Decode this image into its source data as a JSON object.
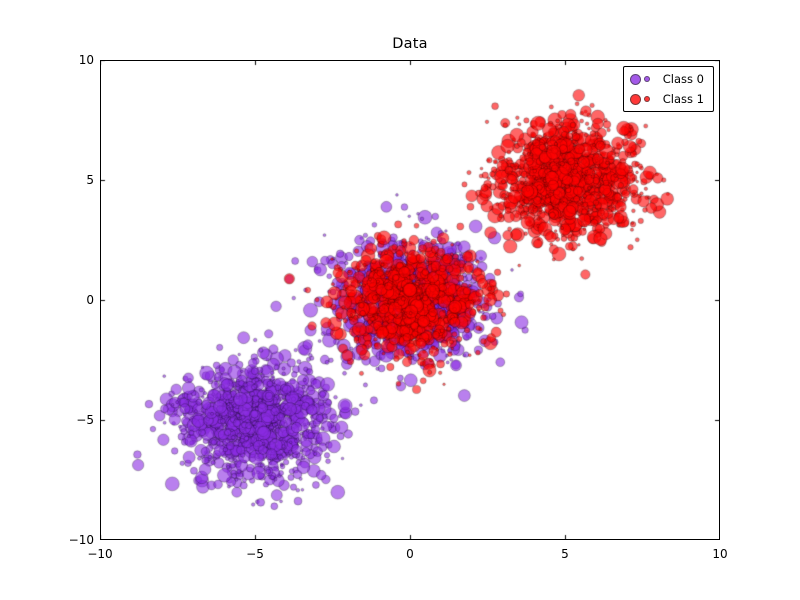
{
  "figure": {
    "background": "#ffffff"
  },
  "chart_data": {
    "type": "scatter",
    "title": "Data",
    "xlabel": "",
    "ylabel": "",
    "xlim": [
      -10,
      10
    ],
    "ylim": [
      -10,
      10
    ],
    "grid": false,
    "xticks": [
      "−10",
      "−5",
      "0",
      "5",
      "10"
    ],
    "yticks": [
      "10",
      "5",
      "0",
      "−5",
      "−10"
    ],
    "xtick_values": [
      -10,
      -5,
      0,
      5,
      10
    ],
    "ytick_values": [
      10,
      5,
      0,
      -5,
      -10
    ],
    "legend": {
      "position": "upper right",
      "items": [
        {
          "label": "Class 0",
          "color": "#8a2be2"
        },
        {
          "label": "Class 1",
          "color": "#ff0000"
        }
      ]
    },
    "marker": {
      "shape": "circle",
      "alpha": 0.6,
      "edge_color": "rgba(0,0,0,0.55)",
      "r_min": 1.3,
      "r_max": 7.2
    },
    "clusters": [
      {
        "class": "Class 0",
        "center": [
          -5,
          -5
        ],
        "std": 1.15,
        "n": 1200,
        "color": "#8a2be2",
        "seed": 11
      },
      {
        "class": "Class 0",
        "center": [
          0,
          0
        ],
        "std": 1.25,
        "n": 900,
        "color": "#8a2be2",
        "seed": 22
      },
      {
        "class": "Class 1",
        "center": [
          0,
          0
        ],
        "std": 1.1,
        "n": 900,
        "color": "#ff0000",
        "seed": 33
      },
      {
        "class": "Class 1",
        "center": [
          5,
          5
        ],
        "std": 1.15,
        "n": 1200,
        "color": "#ff0000",
        "seed": 44
      }
    ]
  }
}
